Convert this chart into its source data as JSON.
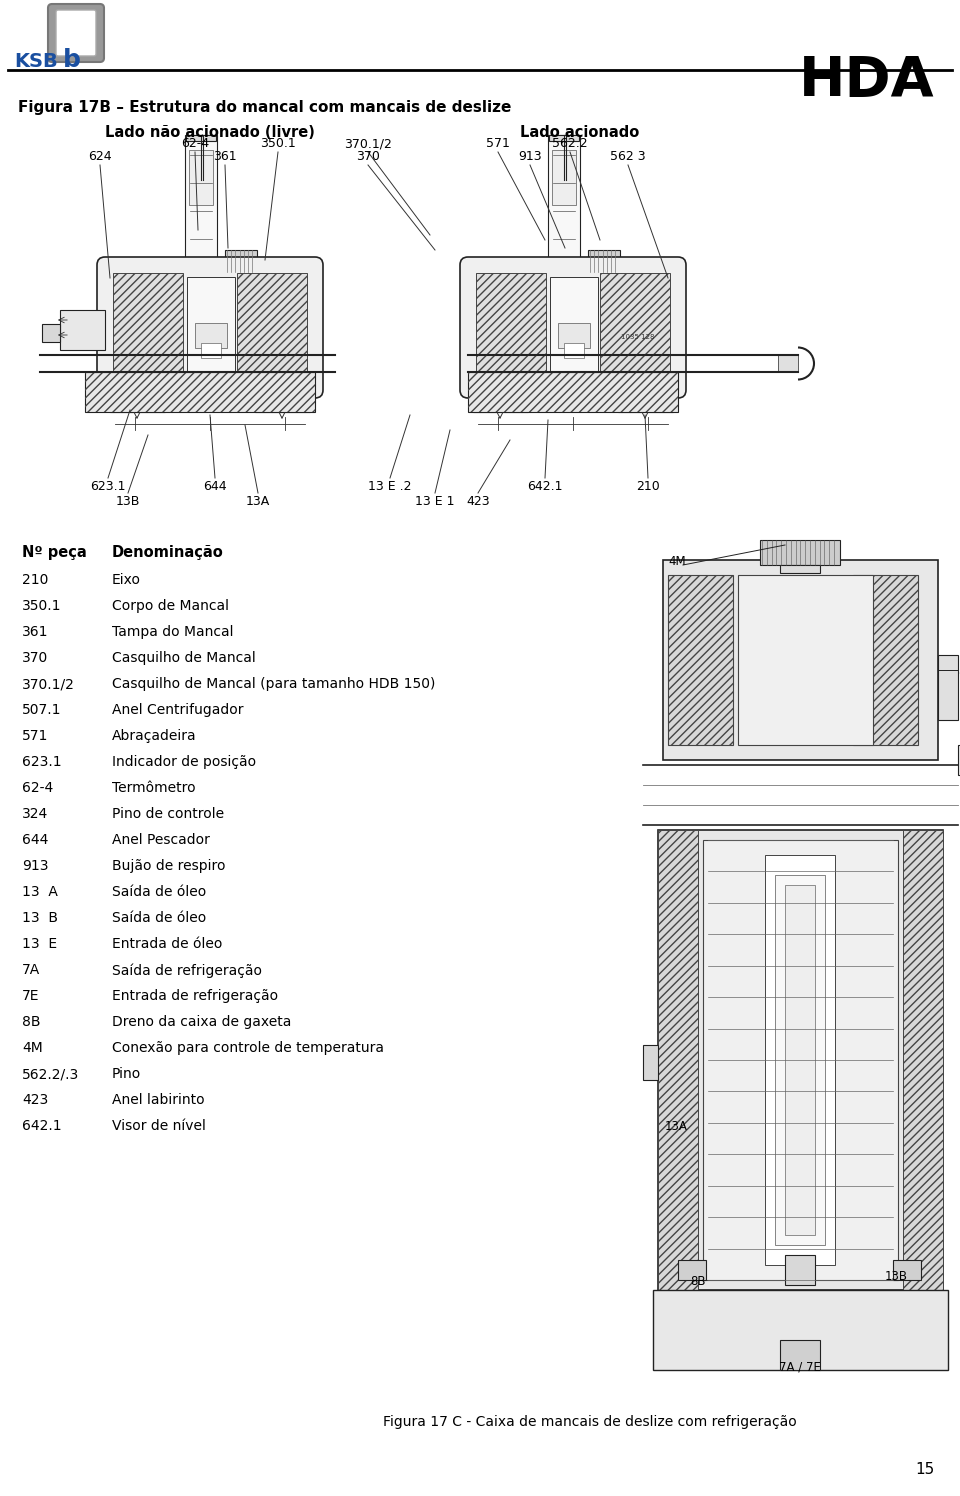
{
  "page_title": "HDA",
  "figure_title": "Figura 17B – Estrutura do mancal com mancais de deslize",
  "left_label": "Lado não acionado (livre)",
  "right_label": "Lado acionado",
  "parts_table": [
    [
      "210",
      "Eixo"
    ],
    [
      "350.1",
      "Corpo de Mancal"
    ],
    [
      "361",
      "Tampa do Mancal"
    ],
    [
      "370",
      "Casquilho de Mancal"
    ],
    [
      "370.1/2",
      "Casquilho de Mancal (para tamanho HDB 150)"
    ],
    [
      "507.1",
      "Anel Centrifugador"
    ],
    [
      "571",
      "Abraçadeira"
    ],
    [
      "623.1",
      "Indicador de posição"
    ],
    [
      "62-4",
      "Termômetro"
    ],
    [
      "324",
      "Pino de controle"
    ],
    [
      "644",
      "Anel Pescador"
    ],
    [
      "913",
      "Bujão de respiro"
    ],
    [
      "13  A",
      "Saída de óleo"
    ],
    [
      "13  B",
      "Saída de óleo"
    ],
    [
      "13  E",
      "Entrada de óleo"
    ],
    [
      "7A",
      "Saída de refrigeração"
    ],
    [
      "7E",
      "Entrada de refrigeração"
    ],
    [
      "8B",
      "Dreno da caixa de gaxeta"
    ],
    [
      "4M",
      "Conexão para controle de temperatura"
    ],
    [
      "562.2/.3",
      "Pino"
    ],
    [
      "423",
      "Anel labirinto"
    ],
    [
      "642.1",
      "Visor de nível"
    ]
  ],
  "col_header_left": "Nº peça",
  "col_header_right": "Denominação",
  "fig_caption": "Figura 17 C - Caixa de mancais de deslize com refrigeração",
  "page_number": "15",
  "bg_color": "#ffffff"
}
